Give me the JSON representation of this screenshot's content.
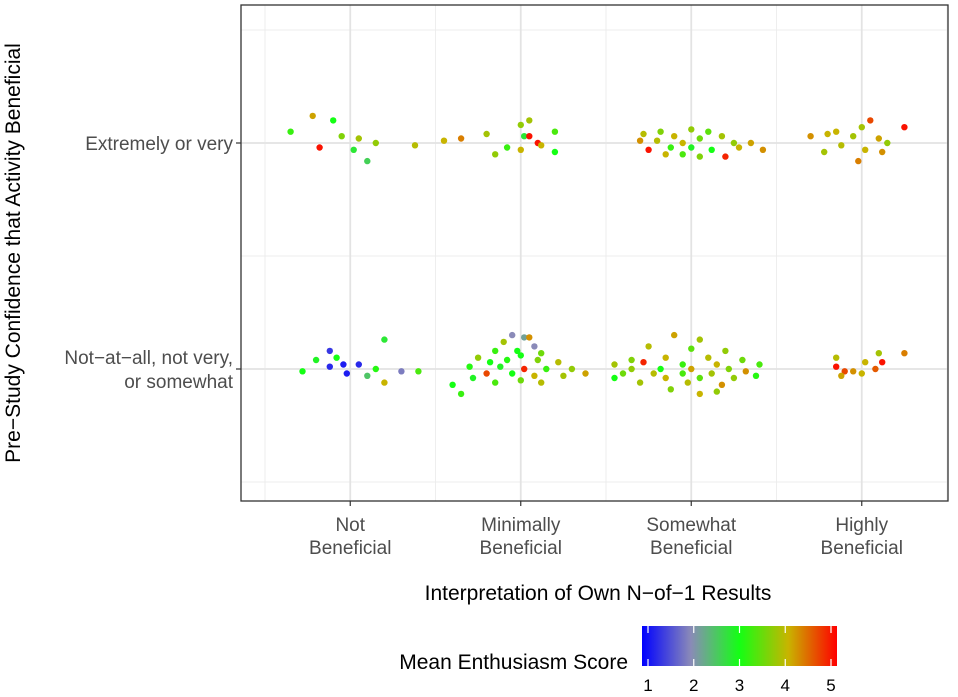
{
  "chart_data": {
    "type": "scatter",
    "subtype": "jitter",
    "x_categories": [
      [
        "Not",
        "Beneficial"
      ],
      [
        "Minimally",
        "Beneficial"
      ],
      [
        "Somewhat",
        "Beneficial"
      ],
      [
        "Highly",
        "Beneficial"
      ]
    ],
    "y_categories": [
      [
        "Extremely or very"
      ],
      [
        "Not−at−all, not very,",
        "or somewhat"
      ]
    ],
    "xlabel": "Interpretation of Own N−of−1 Results",
    "ylabel": "Pre−Study Confidence that Activity Beneficial",
    "legend": {
      "title": "Mean Enthusiasm Score",
      "ticks": [
        "1",
        "2",
        "3",
        "4",
        "5"
      ],
      "range": [
        1,
        5
      ],
      "colors": [
        "#0000ff",
        "#8a8ab8",
        "#14ff14",
        "#c8b400",
        "#ff0000"
      ],
      "position": "bottom"
    },
    "grid": true,
    "points": [
      {
        "x": 1,
        "y": 1,
        "dx": -0.35,
        "dy": 0.05,
        "score": 3.2
      },
      {
        "x": 1,
        "y": 1,
        "dx": -0.22,
        "dy": 0.12,
        "score": 4.1
      },
      {
        "x": 1,
        "y": 1,
        "dx": -0.1,
        "dy": 0.1,
        "score": 3.0
      },
      {
        "x": 1,
        "y": 1,
        "dx": -0.05,
        "dy": 0.03,
        "score": 3.6
      },
      {
        "x": 1,
        "y": 1,
        "dx": 0.05,
        "dy": 0.02,
        "score": 3.8
      },
      {
        "x": 1,
        "y": 1,
        "dx": -0.18,
        "dy": -0.02,
        "score": 4.9
      },
      {
        "x": 1,
        "y": 1,
        "dx": 0.02,
        "dy": -0.03,
        "score": 2.8
      },
      {
        "x": 1,
        "y": 1,
        "dx": 0.15,
        "dy": 0.0,
        "score": 3.7
      },
      {
        "x": 1,
        "y": 1,
        "dx": 0.1,
        "dy": -0.08,
        "score": 2.6
      },
      {
        "x": 1,
        "y": 1,
        "dx": 0.38,
        "dy": -0.01,
        "score": 3.9
      },
      {
        "x": 1,
        "y": 2,
        "dx": -0.12,
        "dy": 0.08,
        "score": 1.4
      },
      {
        "x": 1,
        "y": 2,
        "dx": 0.2,
        "dy": 0.13,
        "score": 2.8
      },
      {
        "x": 1,
        "y": 2,
        "dx": -0.08,
        "dy": 0.05,
        "score": 3.0
      },
      {
        "x": 1,
        "y": 2,
        "dx": -0.2,
        "dy": 0.04,
        "score": 2.9
      },
      {
        "x": 1,
        "y": 2,
        "dx": -0.04,
        "dy": 0.02,
        "score": 1.2
      },
      {
        "x": 1,
        "y": 2,
        "dx": 0.05,
        "dy": 0.02,
        "score": 1.3
      },
      {
        "x": 1,
        "y": 2,
        "dx": -0.12,
        "dy": 0.01,
        "score": 1.3
      },
      {
        "x": 1,
        "y": 2,
        "dx": 0.15,
        "dy": 0.0,
        "score": 3.1
      },
      {
        "x": 1,
        "y": 2,
        "dx": -0.02,
        "dy": -0.02,
        "score": 1.2
      },
      {
        "x": 1,
        "y": 2,
        "dx": 0.3,
        "dy": -0.01,
        "score": 1.9
      },
      {
        "x": 1,
        "y": 2,
        "dx": -0.28,
        "dy": -0.01,
        "score": 3.0
      },
      {
        "x": 1,
        "y": 2,
        "dx": 0.1,
        "dy": -0.03,
        "score": 2.5
      },
      {
        "x": 1,
        "y": 2,
        "dx": 0.4,
        "dy": -0.01,
        "score": 3.3
      },
      {
        "x": 1,
        "y": 2,
        "dx": 0.2,
        "dy": -0.06,
        "score": 4.0
      },
      {
        "x": 2,
        "y": 1,
        "dx": -0.45,
        "dy": 0.01,
        "score": 4.0
      },
      {
        "x": 2,
        "y": 1,
        "dx": -0.35,
        "dy": 0.02,
        "score": 4.3
      },
      {
        "x": 2,
        "y": 1,
        "dx": -0.2,
        "dy": 0.04,
        "score": 3.8
      },
      {
        "x": 2,
        "y": 1,
        "dx": -0.15,
        "dy": -0.05,
        "score": 3.7
      },
      {
        "x": 2,
        "y": 1,
        "dx": -0.08,
        "dy": -0.02,
        "score": 3.2
      },
      {
        "x": 2,
        "y": 1,
        "dx": 0.0,
        "dy": 0.08,
        "score": 3.7
      },
      {
        "x": 2,
        "y": 1,
        "dx": 0.05,
        "dy": 0.1,
        "score": 3.8
      },
      {
        "x": 2,
        "y": 1,
        "dx": 0.02,
        "dy": 0.03,
        "score": 2.8
      },
      {
        "x": 2,
        "y": 1,
        "dx": 0.05,
        "dy": 0.03,
        "score": 4.9
      },
      {
        "x": 2,
        "y": 1,
        "dx": 0.1,
        "dy": 0.0,
        "score": 4.9
      },
      {
        "x": 2,
        "y": 1,
        "dx": 0.12,
        "dy": -0.01,
        "score": 4.0
      },
      {
        "x": 2,
        "y": 1,
        "dx": 0.2,
        "dy": 0.05,
        "score": 3.3
      },
      {
        "x": 2,
        "y": 1,
        "dx": 0.2,
        "dy": -0.04,
        "score": 3.0
      },
      {
        "x": 2,
        "y": 1,
        "dx": 0.0,
        "dy": -0.03,
        "score": 4.0
      },
      {
        "x": 2,
        "y": 2,
        "dx": -0.05,
        "dy": 0.15,
        "score": 2.0
      },
      {
        "x": 2,
        "y": 2,
        "dx": 0.02,
        "dy": 0.14,
        "score": 2.2
      },
      {
        "x": 2,
        "y": 2,
        "dx": 0.05,
        "dy": 0.14,
        "score": 4.2
      },
      {
        "x": 2,
        "y": 2,
        "dx": -0.1,
        "dy": 0.12,
        "score": 3.8
      },
      {
        "x": 2,
        "y": 2,
        "dx": 0.08,
        "dy": 0.1,
        "score": 2.0
      },
      {
        "x": 2,
        "y": 2,
        "dx": -0.15,
        "dy": 0.08,
        "score": 3.2
      },
      {
        "x": 2,
        "y": 2,
        "dx": 0.12,
        "dy": 0.07,
        "score": 3.5
      },
      {
        "x": 2,
        "y": 2,
        "dx": -0.02,
        "dy": 0.08,
        "score": 3.0
      },
      {
        "x": 2,
        "y": 2,
        "dx": 0.0,
        "dy": 0.06,
        "score": 3.0
      },
      {
        "x": 2,
        "y": 2,
        "dx": -0.25,
        "dy": 0.05,
        "score": 3.7
      },
      {
        "x": 2,
        "y": 2,
        "dx": -0.18,
        "dy": 0.03,
        "score": 3.0
      },
      {
        "x": 2,
        "y": 2,
        "dx": -0.08,
        "dy": 0.04,
        "score": 3.1
      },
      {
        "x": 2,
        "y": 2,
        "dx": 0.1,
        "dy": 0.04,
        "score": 3.6
      },
      {
        "x": 2,
        "y": 2,
        "dx": 0.22,
        "dy": 0.03,
        "score": 3.9
      },
      {
        "x": 2,
        "y": 2,
        "dx": -0.3,
        "dy": 0.01,
        "score": 3.1
      },
      {
        "x": 2,
        "y": 2,
        "dx": -0.12,
        "dy": 0.01,
        "score": 2.9
      },
      {
        "x": 2,
        "y": 2,
        "dx": 0.02,
        "dy": 0.0,
        "score": 4.8
      },
      {
        "x": 2,
        "y": 2,
        "dx": 0.15,
        "dy": 0.0,
        "score": 3.2
      },
      {
        "x": 2,
        "y": 2,
        "dx": 0.3,
        "dy": 0.0,
        "score": 3.7
      },
      {
        "x": 2,
        "y": 2,
        "dx": -0.2,
        "dy": -0.02,
        "score": 4.6
      },
      {
        "x": 2,
        "y": 2,
        "dx": -0.05,
        "dy": -0.02,
        "score": 3.0
      },
      {
        "x": 2,
        "y": 2,
        "dx": 0.08,
        "dy": -0.03,
        "score": 4.0
      },
      {
        "x": 2,
        "y": 2,
        "dx": 0.25,
        "dy": -0.03,
        "score": 3.8
      },
      {
        "x": 2,
        "y": 2,
        "dx": 0.38,
        "dy": -0.02,
        "score": 4.1
      },
      {
        "x": 2,
        "y": 2,
        "dx": -0.28,
        "dy": -0.04,
        "score": 2.9
      },
      {
        "x": 2,
        "y": 2,
        "dx": 0.0,
        "dy": -0.05,
        "score": 3.5
      },
      {
        "x": 2,
        "y": 2,
        "dx": -0.15,
        "dy": -0.06,
        "score": 3.3
      },
      {
        "x": 2,
        "y": 2,
        "dx": 0.12,
        "dy": -0.06,
        "score": 3.9
      },
      {
        "x": 2,
        "y": 2,
        "dx": -0.4,
        "dy": -0.07,
        "score": 3.0
      },
      {
        "x": 2,
        "y": 2,
        "dx": -0.35,
        "dy": -0.11,
        "score": 3.2
      },
      {
        "x": 3,
        "y": 1,
        "dx": -0.28,
        "dy": 0.04,
        "score": 3.9
      },
      {
        "x": 3,
        "y": 1,
        "dx": -0.18,
        "dy": 0.05,
        "score": 3.6
      },
      {
        "x": 3,
        "y": 1,
        "dx": -0.1,
        "dy": 0.03,
        "score": 4.0
      },
      {
        "x": 3,
        "y": 1,
        "dx": 0.0,
        "dy": 0.06,
        "score": 3.7
      },
      {
        "x": 3,
        "y": 1,
        "dx": 0.1,
        "dy": 0.05,
        "score": 3.4
      },
      {
        "x": 3,
        "y": 1,
        "dx": 0.18,
        "dy": 0.03,
        "score": 3.8
      },
      {
        "x": 3,
        "y": 1,
        "dx": -0.3,
        "dy": 0.01,
        "score": 4.2
      },
      {
        "x": 3,
        "y": 1,
        "dx": -0.2,
        "dy": 0.01,
        "score": 3.9
      },
      {
        "x": 3,
        "y": 1,
        "dx": -0.05,
        "dy": 0.0,
        "score": 4.0
      },
      {
        "x": 3,
        "y": 1,
        "dx": 0.05,
        "dy": 0.02,
        "score": 3.5
      },
      {
        "x": 3,
        "y": 1,
        "dx": 0.25,
        "dy": 0.0,
        "score": 3.7
      },
      {
        "x": 3,
        "y": 1,
        "dx": 0.35,
        "dy": 0.0,
        "score": 4.1
      },
      {
        "x": 3,
        "y": 1,
        "dx": -0.25,
        "dy": -0.03,
        "score": 4.9
      },
      {
        "x": 3,
        "y": 1,
        "dx": -0.12,
        "dy": -0.02,
        "score": 3.2
      },
      {
        "x": 3,
        "y": 1,
        "dx": 0.0,
        "dy": -0.02,
        "score": 2.9
      },
      {
        "x": 3,
        "y": 1,
        "dx": 0.12,
        "dy": -0.03,
        "score": 3.0
      },
      {
        "x": 3,
        "y": 1,
        "dx": 0.28,
        "dy": -0.02,
        "score": 4.0
      },
      {
        "x": 3,
        "y": 1,
        "dx": 0.42,
        "dy": -0.03,
        "score": 4.2
      },
      {
        "x": 3,
        "y": 1,
        "dx": -0.15,
        "dy": -0.05,
        "score": 4.0
      },
      {
        "x": 3,
        "y": 1,
        "dx": 0.05,
        "dy": -0.06,
        "score": 3.6
      },
      {
        "x": 3,
        "y": 1,
        "dx": 0.2,
        "dy": -0.06,
        "score": 4.8
      },
      {
        "x": 3,
        "y": 1,
        "dx": -0.05,
        "dy": -0.05,
        "score": 3.3
      },
      {
        "x": 3,
        "y": 2,
        "dx": -0.1,
        "dy": 0.15,
        "score": 4.1
      },
      {
        "x": 3,
        "y": 2,
        "dx": 0.05,
        "dy": 0.13,
        "score": 3.8
      },
      {
        "x": 3,
        "y": 2,
        "dx": -0.25,
        "dy": 0.1,
        "score": 3.9
      },
      {
        "x": 3,
        "y": 2,
        "dx": 0.0,
        "dy": 0.09,
        "score": 3.4
      },
      {
        "x": 3,
        "y": 2,
        "dx": 0.2,
        "dy": 0.08,
        "score": 3.7
      },
      {
        "x": 3,
        "y": 2,
        "dx": -0.35,
        "dy": 0.04,
        "score": 3.6
      },
      {
        "x": 3,
        "y": 2,
        "dx": -0.15,
        "dy": 0.05,
        "score": 4.0
      },
      {
        "x": 3,
        "y": 2,
        "dx": 0.1,
        "dy": 0.05,
        "score": 3.9
      },
      {
        "x": 3,
        "y": 2,
        "dx": 0.3,
        "dy": 0.04,
        "score": 3.5
      },
      {
        "x": 3,
        "y": 2,
        "dx": -0.45,
        "dy": 0.02,
        "score": 3.8
      },
      {
        "x": 3,
        "y": 2,
        "dx": -0.28,
        "dy": 0.03,
        "score": 4.8
      },
      {
        "x": 3,
        "y": 2,
        "dx": -0.05,
        "dy": 0.02,
        "score": 3.2
      },
      {
        "x": 3,
        "y": 2,
        "dx": 0.15,
        "dy": 0.02,
        "score": 4.0
      },
      {
        "x": 3,
        "y": 2,
        "dx": 0.4,
        "dy": 0.02,
        "score": 3.3
      },
      {
        "x": 3,
        "y": 2,
        "dx": -0.35,
        "dy": 0.0,
        "score": 3.7
      },
      {
        "x": 3,
        "y": 2,
        "dx": -0.18,
        "dy": 0.0,
        "score": 3.0
      },
      {
        "x": 3,
        "y": 2,
        "dx": 0.0,
        "dy": 0.0,
        "score": 4.1
      },
      {
        "x": 3,
        "y": 2,
        "dx": 0.22,
        "dy": 0.0,
        "score": 3.6
      },
      {
        "x": 3,
        "y": 2,
        "dx": 0.32,
        "dy": -0.01,
        "score": 4.2
      },
      {
        "x": 3,
        "y": 2,
        "dx": -0.4,
        "dy": -0.02,
        "score": 3.5
      },
      {
        "x": 3,
        "y": 2,
        "dx": -0.22,
        "dy": -0.02,
        "score": 3.9
      },
      {
        "x": 3,
        "y": 2,
        "dx": -0.05,
        "dy": -0.02,
        "score": 3.3
      },
      {
        "x": 3,
        "y": 2,
        "dx": 0.12,
        "dy": -0.02,
        "score": 3.8
      },
      {
        "x": 3,
        "y": 2,
        "dx": 0.38,
        "dy": -0.03,
        "score": 3.1
      },
      {
        "x": 3,
        "y": 2,
        "dx": -0.45,
        "dy": -0.04,
        "score": 3.0
      },
      {
        "x": 3,
        "y": 2,
        "dx": -0.15,
        "dy": -0.04,
        "score": 4.0
      },
      {
        "x": 3,
        "y": 2,
        "dx": 0.05,
        "dy": -0.04,
        "score": 3.4
      },
      {
        "x": 3,
        "y": 2,
        "dx": 0.25,
        "dy": -0.04,
        "score": 3.7
      },
      {
        "x": 3,
        "y": 2,
        "dx": -0.3,
        "dy": -0.06,
        "score": 3.8
      },
      {
        "x": 3,
        "y": 2,
        "dx": -0.02,
        "dy": -0.06,
        "score": 3.9
      },
      {
        "x": 3,
        "y": 2,
        "dx": 0.18,
        "dy": -0.07,
        "score": 4.2
      },
      {
        "x": 3,
        "y": 2,
        "dx": -0.12,
        "dy": -0.09,
        "score": 3.6
      },
      {
        "x": 3,
        "y": 2,
        "dx": 0.05,
        "dy": -0.11,
        "score": 4.0
      },
      {
        "x": 3,
        "y": 2,
        "dx": 0.15,
        "dy": -0.1,
        "score": 3.7
      },
      {
        "x": 4,
        "y": 1,
        "dx": -0.15,
        "dy": 0.05,
        "score": 4.0
      },
      {
        "x": 4,
        "y": 1,
        "dx": 0.05,
        "dy": 0.1,
        "score": 4.6
      },
      {
        "x": 4,
        "y": 1,
        "dx": 0.0,
        "dy": 0.07,
        "score": 3.8
      },
      {
        "x": 4,
        "y": 1,
        "dx": 0.25,
        "dy": 0.07,
        "score": 4.9
      },
      {
        "x": 4,
        "y": 1,
        "dx": -0.3,
        "dy": 0.03,
        "score": 4.2
      },
      {
        "x": 4,
        "y": 1,
        "dx": -0.2,
        "dy": 0.04,
        "score": 4.0
      },
      {
        "x": 4,
        "y": 1,
        "dx": -0.05,
        "dy": 0.03,
        "score": 3.8
      },
      {
        "x": 4,
        "y": 1,
        "dx": 0.1,
        "dy": 0.02,
        "score": 4.1
      },
      {
        "x": 4,
        "y": 1,
        "dx": 0.15,
        "dy": 0.0,
        "score": 3.7
      },
      {
        "x": 4,
        "y": 1,
        "dx": -0.12,
        "dy": -0.01,
        "score": 3.9
      },
      {
        "x": 4,
        "y": 1,
        "dx": 0.02,
        "dy": -0.03,
        "score": 4.0
      },
      {
        "x": 4,
        "y": 1,
        "dx": 0.12,
        "dy": -0.04,
        "score": 4.2
      },
      {
        "x": 4,
        "y": 1,
        "dx": -0.22,
        "dy": -0.04,
        "score": 3.8
      },
      {
        "x": 4,
        "y": 1,
        "dx": -0.02,
        "dy": -0.08,
        "score": 4.3
      },
      {
        "x": 4,
        "y": 2,
        "dx": 0.25,
        "dy": 0.07,
        "score": 4.3
      },
      {
        "x": 4,
        "y": 2,
        "dx": 0.1,
        "dy": 0.07,
        "score": 3.8
      },
      {
        "x": 4,
        "y": 2,
        "dx": -0.15,
        "dy": 0.05,
        "score": 3.9
      },
      {
        "x": 4,
        "y": 2,
        "dx": 0.02,
        "dy": 0.03,
        "score": 4.0
      },
      {
        "x": 4,
        "y": 2,
        "dx": 0.12,
        "dy": 0.03,
        "score": 4.9
      },
      {
        "x": 4,
        "y": 2,
        "dx": -0.15,
        "dy": 0.01,
        "score": 4.9
      },
      {
        "x": 4,
        "y": 2,
        "dx": 0.08,
        "dy": 0.0,
        "score": 4.5
      },
      {
        "x": 4,
        "y": 2,
        "dx": -0.1,
        "dy": -0.01,
        "score": 4.6
      },
      {
        "x": 4,
        "y": 2,
        "dx": -0.05,
        "dy": -0.01,
        "score": 4.2
      },
      {
        "x": 4,
        "y": 2,
        "dx": 0.0,
        "dy": -0.02,
        "score": 4.0
      },
      {
        "x": 4,
        "y": 2,
        "dx": -0.12,
        "dy": -0.03,
        "score": 4.1
      }
    ]
  }
}
